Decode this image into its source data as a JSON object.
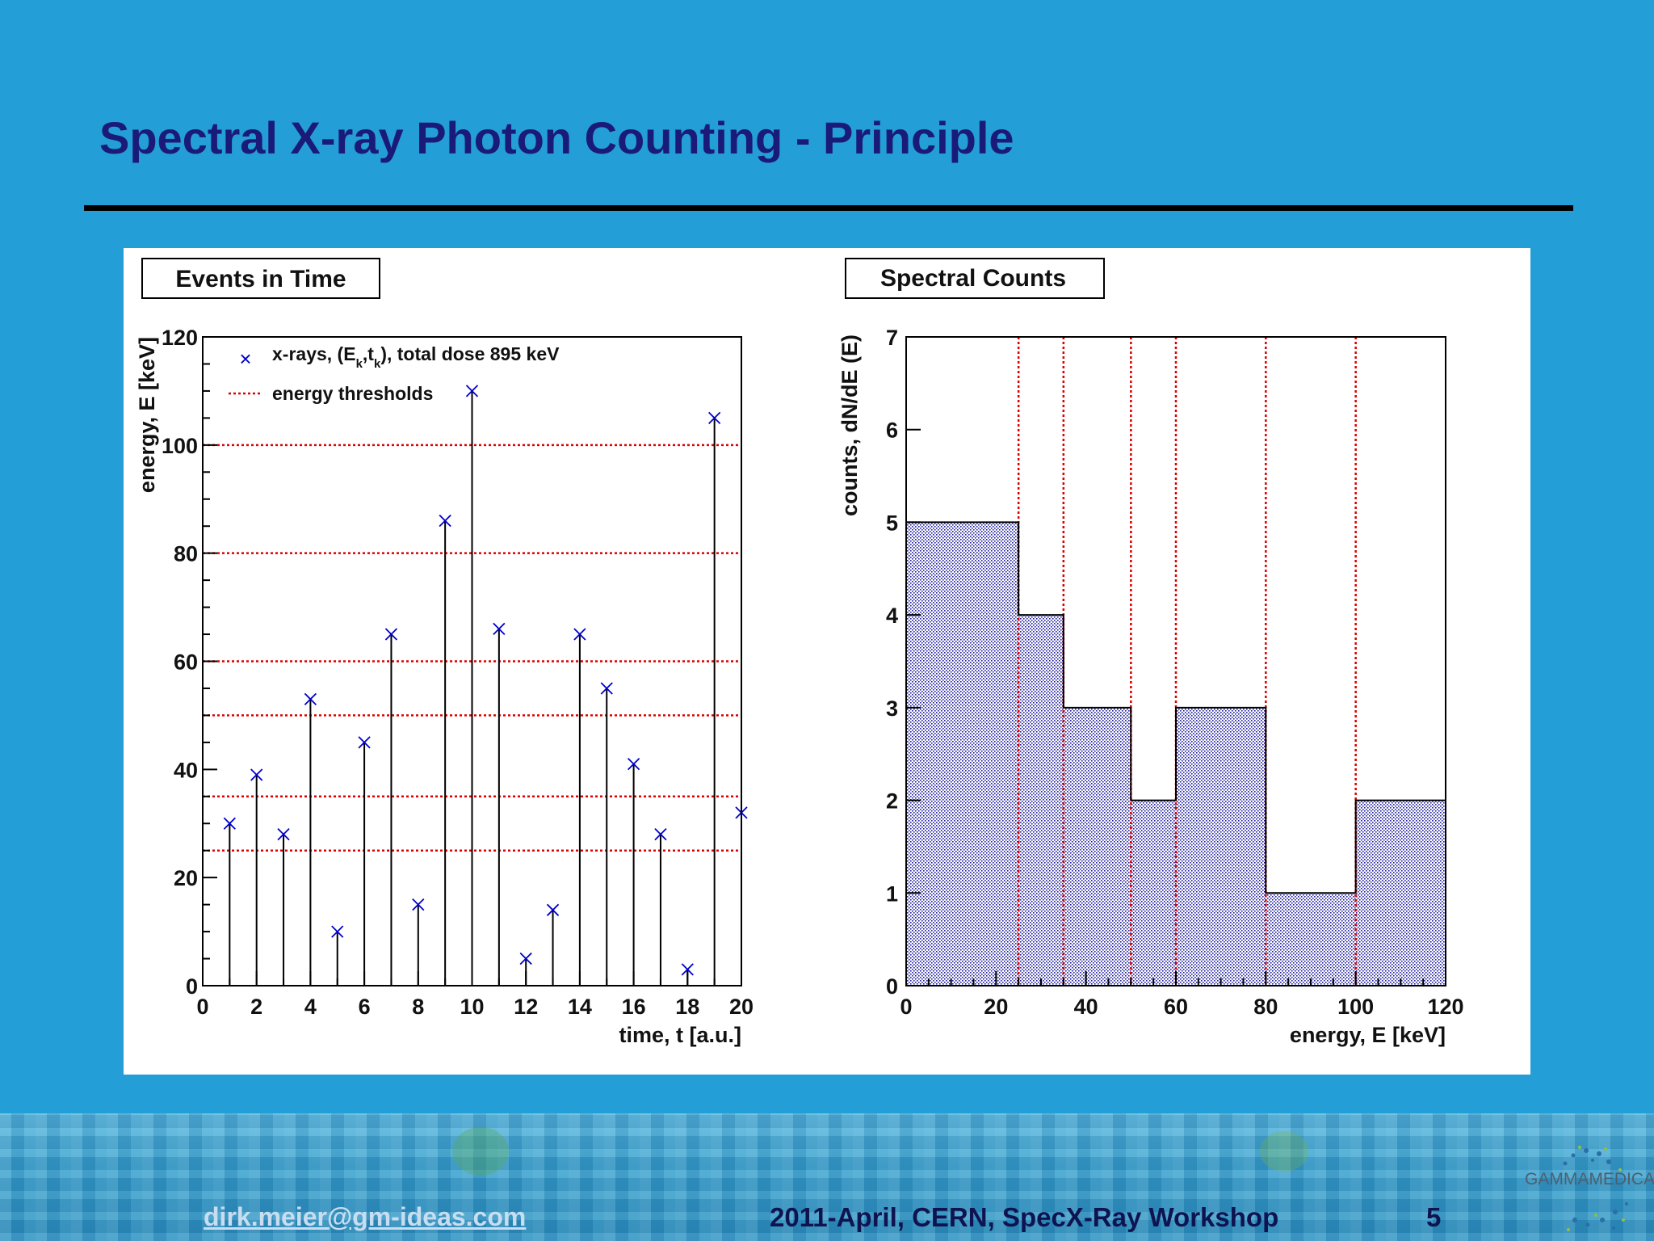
{
  "slide": {
    "title": "Spectral X-ray Photon Counting - Principle",
    "footer_email": "dirk.meier@gm-ideas.com",
    "footer_event": "2011-April, CERN, SpecX-Ray  Workshop",
    "page_number": "5",
    "logo_text": "GAMMAMEDICA"
  },
  "colors": {
    "background": "#249ed6",
    "title": "#1a1a78",
    "marker": "#0000cc",
    "threshold": "#dd0000",
    "fill": "#1b1b9c"
  },
  "chart_data": [
    {
      "type": "scatter",
      "title": "Events in Time",
      "xlabel": "time, t [a.u.]",
      "ylabel": "energy, E [keV]",
      "xlim": [
        0,
        20
      ],
      "ylim": [
        0,
        120
      ],
      "xticks": [
        0,
        2,
        4,
        6,
        8,
        10,
        12,
        14,
        16,
        18,
        20
      ],
      "yticks": [
        0,
        20,
        40,
        60,
        80,
        100,
        120
      ],
      "legend_position": "top-left",
      "legend": {
        "xrays_prefix": "x-rays, (E",
        "xrays_sub1": "k",
        "xrays_mid": ",t",
        "xrays_sub2": "k",
        "xrays_suffix": "), total dose 895 keV",
        "thresholds": "energy thresholds"
      },
      "series": [
        {
          "x": [
            1,
            2,
            3,
            4,
            5,
            6,
            7,
            8,
            9,
            10,
            11,
            12,
            13,
            14,
            15,
            16,
            17,
            18,
            19,
            20
          ],
          "y": [
            30,
            39,
            28,
            53,
            10,
            45,
            65,
            15,
            86,
            110,
            66,
            5,
            14,
            65,
            55,
            41,
            28,
            3,
            105,
            32
          ]
        }
      ],
      "thresholds": [
        25,
        35,
        50,
        60,
        80,
        100
      ]
    },
    {
      "type": "bar",
      "title": "Spectral Counts",
      "xlabel": "energy, E [keV]",
      "ylabel": "counts, dN/dE (E)",
      "xlim": [
        0,
        120
      ],
      "ylim": [
        0,
        7
      ],
      "xticks": [
        0,
        20,
        40,
        60,
        80,
        100,
        120
      ],
      "yticks": [
        0,
        1,
        2,
        3,
        4,
        5,
        6,
        7
      ],
      "bin_edges": [
        0,
        25,
        35,
        50,
        60,
        80,
        100,
        120
      ],
      "values": [
        5,
        4,
        3,
        2,
        3,
        1,
        2
      ],
      "thresholds": [
        25,
        35,
        50,
        60,
        80,
        100
      ]
    }
  ]
}
